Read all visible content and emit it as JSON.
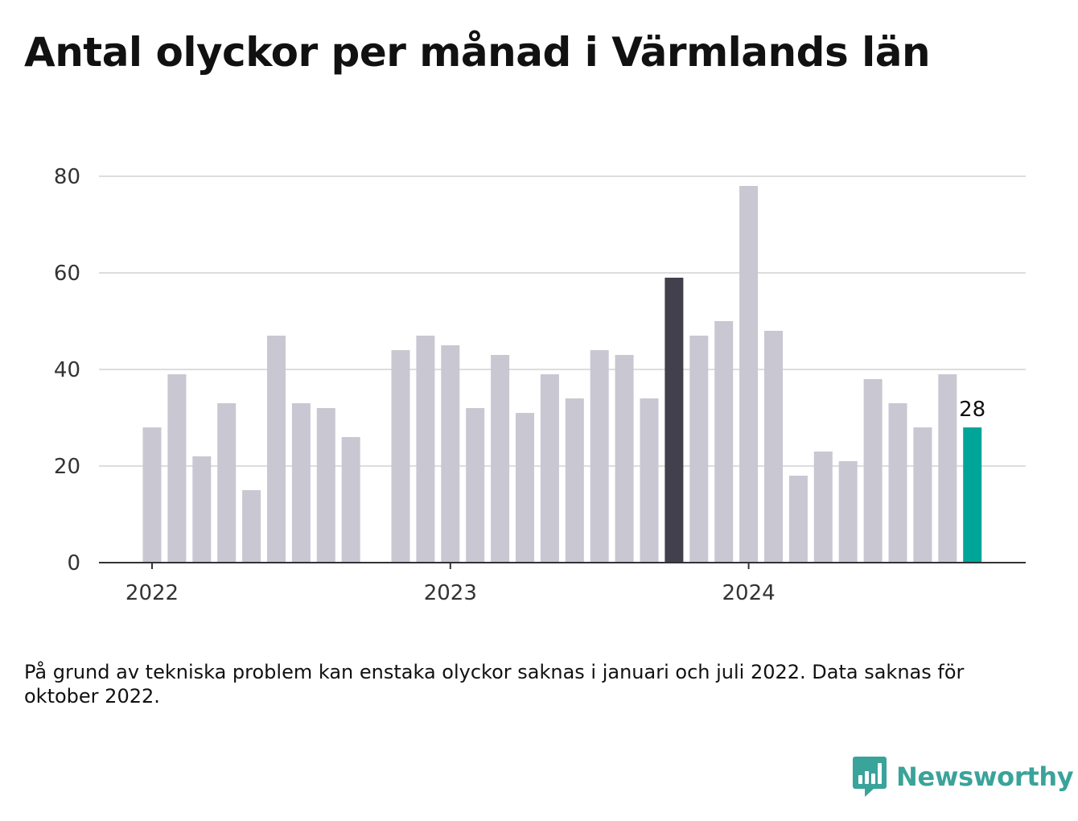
{
  "title": "Antal olyckor per månad i Värmlands län",
  "footnote": "På grund av tekniska problem kan enstaka olyckor saknas i januari och juli 2022. Data saknas för oktober 2022.",
  "brand": {
    "name": "Newsworthy",
    "color": "#3aa39a"
  },
  "colors": {
    "default_bar": "#c8c7d2",
    "highlight_bar": "#42404d",
    "latest_bar": "#00a59a",
    "grid": "#dddddd",
    "axis": "#333333"
  },
  "chart_data": {
    "type": "bar",
    "title": "Antal olyckor per månad i Värmlands län",
    "xlabel": "",
    "ylabel": "",
    "ylim": [
      0,
      80
    ],
    "y_ticks": [
      0,
      20,
      40,
      60,
      80
    ],
    "x_ticks": [
      {
        "label": "2022",
        "month": "2022-01"
      },
      {
        "label": "2023",
        "month": "2023-01"
      },
      {
        "label": "2024",
        "month": "2024-01"
      }
    ],
    "grid": true,
    "legend": "none",
    "months": [
      "2022-01",
      "2022-02",
      "2022-03",
      "2022-04",
      "2022-05",
      "2022-06",
      "2022-07",
      "2022-08",
      "2022-09",
      "2022-10",
      "2022-11",
      "2022-12",
      "2023-01",
      "2023-02",
      "2023-03",
      "2023-04",
      "2023-05",
      "2023-06",
      "2023-07",
      "2023-08",
      "2023-09",
      "2023-10",
      "2023-11",
      "2023-12",
      "2024-01",
      "2024-02",
      "2024-03",
      "2024-04",
      "2024-05",
      "2024-06",
      "2024-07",
      "2024-08",
      "2024-09",
      "2024-10"
    ],
    "values": [
      28,
      39,
      22,
      33,
      15,
      47,
      33,
      32,
      26,
      null,
      44,
      47,
      45,
      32,
      43,
      31,
      39,
      34,
      44,
      43,
      34,
      59,
      47,
      50,
      78,
      48,
      18,
      23,
      21,
      38,
      33,
      28,
      39,
      28
    ],
    "highlight": {
      "month": "2023-10",
      "value": 59
    },
    "latest": {
      "month": "2024-10",
      "value": 28,
      "label": "28"
    }
  }
}
